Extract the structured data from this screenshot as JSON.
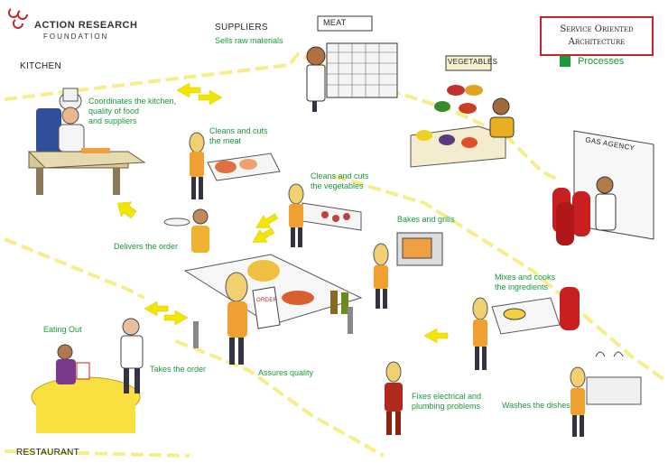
{
  "logo": {
    "line1": "ACTION RESEARCH",
    "line2": "FOUNDATION"
  },
  "title": {
    "line1": "Service Oriented",
    "line2": "Architecture"
  },
  "legend": {
    "label": "Processes",
    "color": "#1a9a3a"
  },
  "zones": {
    "kitchen": "KITCHEN",
    "restaurant": "RESTAURANT",
    "suppliers": "SUPPLIERS"
  },
  "signs": {
    "meat": "MEAT",
    "vegetables": "VEGETABLES",
    "gas": "GAS AGENCY",
    "order": "ORDER"
  },
  "processes": {
    "sells": "Sells raw materials",
    "coordinates": "Coordinates the kitchen,\nquality of food\nand suppliers",
    "meat": "Cleans and cuts\nthe meat",
    "vegetables": "Cleans and cuts\nthe vegetables",
    "delivers": "Delivers the order",
    "bakes": "Bakes and grills",
    "mixes": "Mixes and cooks\nthe ingredients",
    "eating": "Eating Out",
    "takes": "Takes the order",
    "assures": "Assures quality",
    "fixes": "Fixes electrical and\nplumbing problems",
    "washes": "Washes the dishes"
  },
  "colors": {
    "accent": "#1a9a3a",
    "brand": "#c8242b",
    "arrow": "#f2e600",
    "divider": "#f5ee8a"
  }
}
